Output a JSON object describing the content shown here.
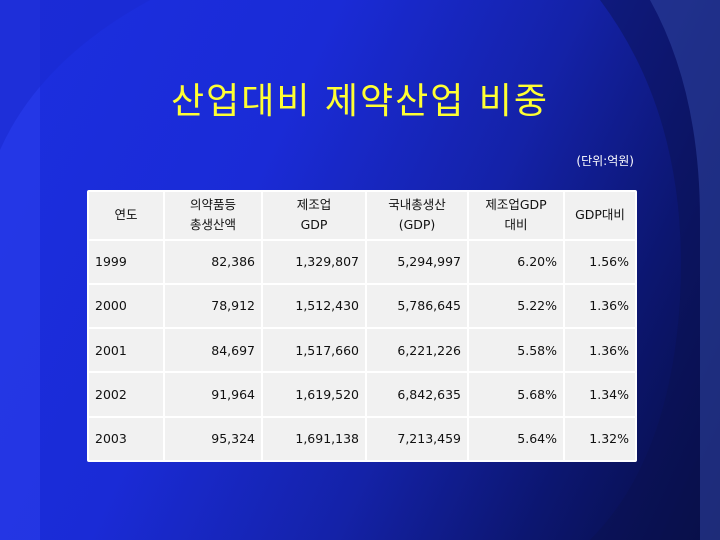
{
  "slide": {
    "title": "산업대비 제약산업 비중",
    "unit_note": "(단위:억원)"
  },
  "table": {
    "headers": [
      {
        "line1": "연도",
        "line2": ""
      },
      {
        "line1": "의약품등",
        "line2": "총생산액"
      },
      {
        "line1": "제조업",
        "line2": "GDP"
      },
      {
        "line1": "국내총생산",
        "line2": "(GDP)"
      },
      {
        "line1": "제조업GDP",
        "line2": "대비"
      },
      {
        "line1": "GDP대비",
        "line2": ""
      }
    ],
    "rows": [
      [
        "1999",
        "82,386",
        "1,329,807",
        "5,294,997",
        "6.20%",
        "1.56%"
      ],
      [
        "2000",
        "78,912",
        "1,512,430",
        "5,786,645",
        "5.22%",
        "1.36%"
      ],
      [
        "2001",
        "84,697",
        "1,517,660",
        "6,221,226",
        "5.58%",
        "1.36%"
      ],
      [
        "2002",
        "91,964",
        "1,619,520",
        "6,842,635",
        "5.68%",
        "1.34%"
      ],
      [
        "2003",
        "95,324",
        "1,691,138",
        "7,213,459",
        "5.64%",
        "1.32%"
      ]
    ]
  },
  "colors": {
    "title": "#ffff33",
    "background": "#1a2bd6",
    "accent_shape": "#5b7ff0"
  }
}
